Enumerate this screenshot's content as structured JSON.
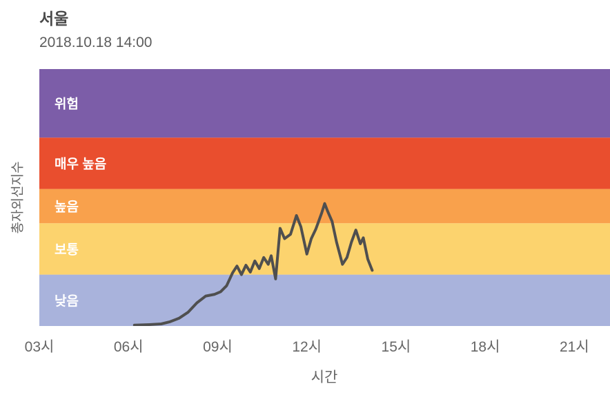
{
  "chart_data": {
    "type": "line",
    "title": "서울",
    "subtitle": "2018.10.18 14:00",
    "xlabel": "시간",
    "ylabel": "총자외선지수",
    "grid": false,
    "legend_position": "none",
    "x_range_hours": [
      3,
      22.2
    ],
    "y_range": [
      0,
      15
    ],
    "x_ticks": [
      {
        "hour": 3,
        "label": "03시"
      },
      {
        "hour": 6,
        "label": "06시"
      },
      {
        "hour": 9,
        "label": "09시"
      },
      {
        "hour": 12,
        "label": "12시"
      },
      {
        "hour": 15,
        "label": "15시"
      },
      {
        "hour": 18,
        "label": "18시"
      },
      {
        "hour": 21,
        "label": "21시"
      }
    ],
    "bands": [
      {
        "key": "low",
        "label": "낮음",
        "min": 0,
        "max": 3,
        "color": "#a9b3dc"
      },
      {
        "key": "moderate",
        "label": "보통",
        "min": 3,
        "max": 6,
        "color": "#fcd36e"
      },
      {
        "key": "high",
        "label": "높음",
        "min": 6,
        "max": 8,
        "color": "#f9a14c"
      },
      {
        "key": "very-high",
        "label": "매우 높음",
        "min": 8,
        "max": 11,
        "color": "#e94e2e"
      },
      {
        "key": "danger",
        "label": "위험",
        "min": 11,
        "max": 15,
        "color": "#7c5da8"
      }
    ],
    "series": [
      {
        "name": "총자외선지수",
        "color": "#4f4f4f",
        "stroke_width": 4,
        "points_hour_uv": [
          [
            6.2,
            0.05
          ],
          [
            6.7,
            0.08
          ],
          [
            7.1,
            0.12
          ],
          [
            7.4,
            0.25
          ],
          [
            7.7,
            0.45
          ],
          [
            8.0,
            0.8
          ],
          [
            8.3,
            1.35
          ],
          [
            8.6,
            1.75
          ],
          [
            8.9,
            1.85
          ],
          [
            9.1,
            2.0
          ],
          [
            9.3,
            2.35
          ],
          [
            9.5,
            3.1
          ],
          [
            9.65,
            3.5
          ],
          [
            9.8,
            3.0
          ],
          [
            9.95,
            3.55
          ],
          [
            10.1,
            3.15
          ],
          [
            10.25,
            3.8
          ],
          [
            10.4,
            3.35
          ],
          [
            10.55,
            4.0
          ],
          [
            10.7,
            3.6
          ],
          [
            10.8,
            4.1
          ],
          [
            10.95,
            2.75
          ],
          [
            11.1,
            5.7
          ],
          [
            11.25,
            5.1
          ],
          [
            11.45,
            5.35
          ],
          [
            11.65,
            6.45
          ],
          [
            11.8,
            5.8
          ],
          [
            12.0,
            4.2
          ],
          [
            12.15,
            5.1
          ],
          [
            12.3,
            5.65
          ],
          [
            12.5,
            6.6
          ],
          [
            12.6,
            7.15
          ],
          [
            12.7,
            6.7
          ],
          [
            12.85,
            6.1
          ],
          [
            13.0,
            4.9
          ],
          [
            13.2,
            3.6
          ],
          [
            13.35,
            4.0
          ],
          [
            13.5,
            4.9
          ],
          [
            13.65,
            5.6
          ],
          [
            13.8,
            4.8
          ],
          [
            13.9,
            5.15
          ],
          [
            14.05,
            3.9
          ],
          [
            14.2,
            3.25
          ]
        ]
      }
    ]
  }
}
